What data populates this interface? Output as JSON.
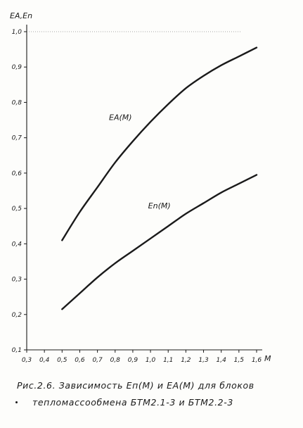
{
  "chart_data": {
    "type": "line",
    "ylabel": "EA,En",
    "xlabel": "M",
    "xlim": [
      0.3,
      1.6
    ],
    "ylim": [
      0.1,
      1.0
    ],
    "x_ticks": [
      "0,3",
      "0,4",
      "0,5",
      "0,6",
      "0,7",
      "0,8",
      "0,9",
      "1,0",
      "1,1",
      "1,2",
      "1,3",
      "1,4",
      "1,5",
      "1,6"
    ],
    "y_ticks": [
      "0,1",
      "0,2",
      "0,3",
      "0,4",
      "0,5",
      "0,6",
      "0,7",
      "0,8",
      "0,9",
      "1,0"
    ],
    "grid": false,
    "series": [
      {
        "name": "EA(M)",
        "x": [
          0.5,
          0.6,
          0.7,
          0.8,
          0.9,
          1.0,
          1.1,
          1.2,
          1.3,
          1.4,
          1.5,
          1.6
        ],
        "y": [
          0.41,
          0.49,
          0.56,
          0.63,
          0.69,
          0.745,
          0.795,
          0.84,
          0.875,
          0.905,
          0.93,
          0.955
        ]
      },
      {
        "name": "En(M)",
        "x": [
          0.5,
          0.6,
          0.7,
          0.8,
          0.9,
          1.0,
          1.1,
          1.2,
          1.3,
          1.4,
          1.5,
          1.6
        ],
        "y": [
          0.215,
          0.26,
          0.305,
          0.345,
          0.38,
          0.415,
          0.45,
          0.485,
          0.515,
          0.545,
          0.57,
          0.595
        ]
      }
    ]
  },
  "caption": {
    "line1": "Рис.2.6. Зависимость Еп(М) и ЕА(М) для блоков",
    "line2": "тепломассообмена БТМ2.1-3 и БТМ2.2-3"
  }
}
